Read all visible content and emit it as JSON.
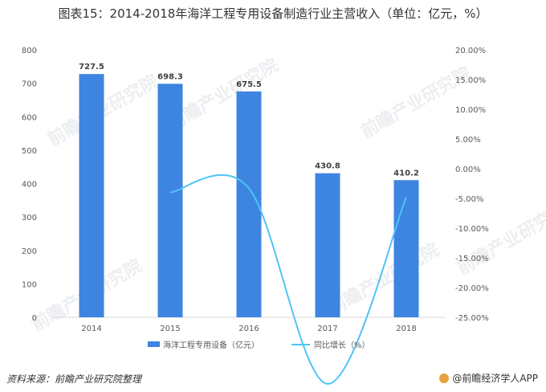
{
  "title": "图表15：2014-2018年海洋工程专用设备制造行业主营收入（单位：亿元，%）",
  "source_text": "资料来源：前瞻产业研究院整理",
  "brand_text": "@前瞻经济学人APP",
  "watermark_text": "前瞻产业研究院",
  "chart_data": {
    "type": "bar+line",
    "categories": [
      "2014",
      "2015",
      "2016",
      "2017",
      "2018"
    ],
    "series": [
      {
        "name": "海洋工程专用设备（亿元）",
        "type": "bar",
        "axis": "left",
        "color": "#3d85e0",
        "values": [
          727.5,
          698.3,
          675.5,
          430.8,
          410.2
        ],
        "labels": [
          "727.5",
          "698.3",
          "675.5",
          "430.8",
          "410.2"
        ]
      },
      {
        "name": "同比增长（%）",
        "type": "line",
        "axis": "right",
        "color": "#4fc3f7",
        "values": [
          null,
          -4.0,
          -3.3,
          -36.2,
          -4.8
        ]
      }
    ],
    "left_axis": {
      "min": 0,
      "max": 800,
      "ticks": [
        "0",
        "100",
        "200",
        "300",
        "400",
        "500",
        "600",
        "700",
        "800"
      ]
    },
    "right_axis": {
      "min": -25,
      "max": 20,
      "ticks": [
        "-25.00%",
        "-20.00%",
        "-15.00%",
        "-10.00%",
        "-5.00%",
        "0.00%",
        "5.00%",
        "10.00%",
        "15.00%",
        "20.00%"
      ]
    },
    "legend_position": "bottom"
  }
}
